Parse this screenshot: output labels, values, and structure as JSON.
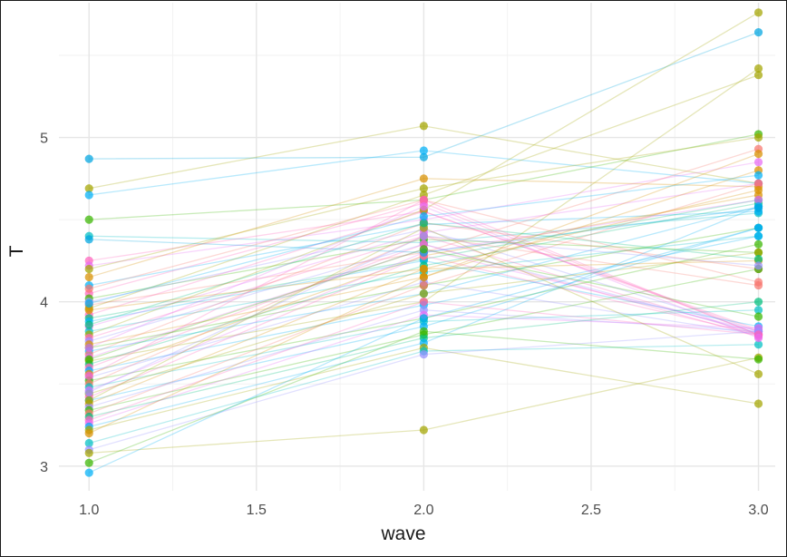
{
  "chart_data": {
    "type": "line",
    "xlabel": "wave",
    "ylabel": "T",
    "xlim": [
      0.91,
      3.05
    ],
    "ylim": [
      2.85,
      5.82
    ],
    "x_ticks": [
      1.0,
      1.5,
      2.0,
      2.5,
      3.0
    ],
    "x_tick_labels": [
      "1.0",
      "1.5",
      "2.0",
      "2.5",
      "3.0"
    ],
    "y_ticks": [
      3,
      4,
      5
    ],
    "y_tick_labels": [
      "3",
      "4",
      "5"
    ],
    "grid": true,
    "legend": "none",
    "x": [
      1.0,
      2.0,
      3.0
    ],
    "series": [
      {
        "color": "#00A5E0",
        "values": [
          4.87,
          4.88,
          5.64
        ]
      },
      {
        "color": "#A3A500",
        "values": [
          4.69,
          5.07,
          4.72
        ]
      },
      {
        "color": "#00B0F6",
        "values": [
          4.65,
          4.92,
          4.72
        ]
      },
      {
        "color": "#39B600",
        "values": [
          4.5,
          4.62,
          5.02
        ]
      },
      {
        "color": "#00BFC4",
        "values": [
          4.4,
          4.36,
          4.54
        ]
      },
      {
        "color": "#FF62BC",
        "values": [
          4.25,
          4.55,
          3.82
        ]
      },
      {
        "color": "#E76BF3",
        "values": [
          4.22,
          4.5,
          4.85
        ]
      },
      {
        "color": "#A3A500",
        "values": [
          4.2,
          4.69,
          5.0
        ]
      },
      {
        "color": "#D89000",
        "values": [
          4.15,
          4.75,
          4.7
        ]
      },
      {
        "color": "#00B0F6",
        "values": [
          4.1,
          4.47,
          4.55
        ]
      },
      {
        "color": "#FF62BC",
        "values": [
          4.05,
          4.6,
          3.8
        ]
      },
      {
        "color": "#39B600",
        "values": [
          4.02,
          4.38,
          4.3
        ]
      },
      {
        "color": "#9590FF",
        "values": [
          4.0,
          4.44,
          3.82
        ]
      },
      {
        "color": "#F8766D",
        "values": [
          3.98,
          4.3,
          4.93
        ]
      },
      {
        "color": "#A3A500",
        "values": [
          3.96,
          4.65,
          5.38
        ]
      },
      {
        "color": "#FF62BC",
        "values": [
          3.92,
          4.55,
          3.83
        ]
      },
      {
        "color": "#00BF7D",
        "values": [
          3.9,
          4.26,
          4.62
        ]
      },
      {
        "color": "#00B0F6",
        "values": [
          3.88,
          4.25,
          3.85
        ]
      },
      {
        "color": "#E76BF3",
        "values": [
          3.85,
          4.42,
          4.72
        ]
      },
      {
        "color": "#00BFC4",
        "values": [
          3.82,
          4.18,
          4.4
        ]
      },
      {
        "color": "#A3A500",
        "values": [
          3.8,
          4.56,
          5.76
        ]
      },
      {
        "color": "#FF62BC",
        "values": [
          3.78,
          4.4,
          3.8
        ]
      },
      {
        "color": "#9590FF",
        "values": [
          3.76,
          4.35,
          3.81
        ]
      },
      {
        "color": "#D89000",
        "values": [
          3.74,
          4.15,
          4.9
        ]
      },
      {
        "color": "#39B600",
        "values": [
          3.72,
          4.1,
          4.45
        ]
      },
      {
        "color": "#00B0F6",
        "values": [
          3.7,
          4.05,
          4.58
        ]
      },
      {
        "color": "#F8766D",
        "values": [
          3.68,
          4.48,
          4.2
        ]
      },
      {
        "color": "#E76BF3",
        "values": [
          3.66,
          4.32,
          3.82
        ]
      },
      {
        "color": "#A3A500",
        "values": [
          3.64,
          4.0,
          5.42
        ]
      },
      {
        "color": "#00BF7D",
        "values": [
          3.62,
          4.22,
          4.6
        ]
      },
      {
        "color": "#FF62BC",
        "values": [
          3.6,
          4.35,
          3.79
        ]
      },
      {
        "color": "#00B0F6",
        "values": [
          3.58,
          3.98,
          4.4
        ]
      },
      {
        "color": "#D89000",
        "values": [
          3.56,
          4.28,
          4.65
        ]
      },
      {
        "color": "#9590FF",
        "values": [
          3.54,
          4.12,
          3.8
        ]
      },
      {
        "color": "#39B600",
        "values": [
          3.52,
          3.9,
          4.35
        ]
      },
      {
        "color": "#F8766D",
        "values": [
          3.5,
          4.4,
          4.1
        ]
      },
      {
        "color": "#00BFC4",
        "values": [
          3.48,
          3.88,
          3.95
        ]
      },
      {
        "color": "#E76BF3",
        "values": [
          3.46,
          4.3,
          4.62
        ]
      },
      {
        "color": "#A3A500",
        "values": [
          3.44,
          4.05,
          4.3
        ]
      },
      {
        "color": "#FF62BC",
        "values": [
          3.42,
          4.28,
          3.8
        ]
      },
      {
        "color": "#00B0F6",
        "values": [
          3.4,
          3.85,
          4.45
        ]
      },
      {
        "color": "#D89000",
        "values": [
          3.38,
          4.2,
          4.25
        ]
      },
      {
        "color": "#9590FF",
        "values": [
          3.36,
          3.95,
          3.82
        ]
      },
      {
        "color": "#39B600",
        "values": [
          3.34,
          3.8,
          4.2
        ]
      },
      {
        "color": "#F8766D",
        "values": [
          3.32,
          4.1,
          4.72
        ]
      },
      {
        "color": "#00BF7D",
        "values": [
          3.3,
          3.78,
          4.0
        ]
      },
      {
        "color": "#FF62BC",
        "values": [
          3.28,
          4.0,
          3.8
        ]
      },
      {
        "color": "#E76BF3",
        "values": [
          3.26,
          3.92,
          3.84
        ]
      },
      {
        "color": "#00B0F6",
        "values": [
          3.24,
          3.75,
          4.58
        ]
      },
      {
        "color": "#A3A500",
        "values": [
          3.22,
          3.72,
          3.38
        ]
      },
      {
        "color": "#D89000",
        "values": [
          3.2,
          4.15,
          4.8
        ]
      },
      {
        "color": "#00BFC4",
        "values": [
          3.14,
          3.7,
          3.74
        ]
      },
      {
        "color": "#9590FF",
        "values": [
          3.1,
          3.68,
          3.82
        ]
      },
      {
        "color": "#A3A500",
        "values": [
          3.08,
          3.22,
          3.66
        ]
      },
      {
        "color": "#39B600",
        "values": [
          3.02,
          3.82,
          3.65
        ]
      },
      {
        "color": "#00B0F6",
        "values": [
          2.96,
          3.9,
          4.45
        ]
      },
      {
        "color": "#A3A500",
        "values": [
          3.4,
          4.45,
          3.56
        ]
      },
      {
        "color": "#00BF7D",
        "values": [
          3.86,
          4.48,
          4.26
        ]
      },
      {
        "color": "#F8766D",
        "values": [
          4.08,
          4.62,
          4.12
        ]
      },
      {
        "color": "#00A5E0",
        "values": [
          4.38,
          4.3,
          4.57
        ]
      },
      {
        "color": "#FF62BC",
        "values": [
          3.55,
          4.62,
          3.8
        ]
      },
      {
        "color": "#E76BF3",
        "values": [
          3.72,
          4.58,
          3.78
        ]
      },
      {
        "color": "#39B600",
        "values": [
          3.65,
          4.32,
          3.91
        ]
      },
      {
        "color": "#D89000",
        "values": [
          3.95,
          4.2,
          4.68
        ]
      },
      {
        "color": "#9590FF",
        "values": [
          3.45,
          4.4,
          4.22
        ]
      },
      {
        "color": "#00B0F6",
        "values": [
          3.99,
          4.52,
          4.77
        ]
      }
    ]
  }
}
